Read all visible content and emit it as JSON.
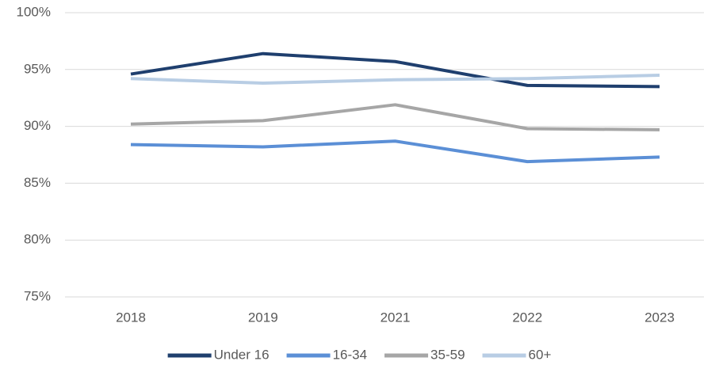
{
  "chart_data": {
    "type": "line",
    "categories": [
      "2018",
      "2019",
      "2021",
      "2022",
      "2023"
    ],
    "series": [
      {
        "name": "Under 16",
        "color": "#1f3f6e",
        "values": [
          94.6,
          96.4,
          95.7,
          93.6,
          93.5
        ]
      },
      {
        "name": "16-34",
        "color": "#5b8fd6",
        "values": [
          88.4,
          88.2,
          88.7,
          86.9,
          87.3
        ]
      },
      {
        "name": "35-59",
        "color": "#a6a6a6",
        "values": [
          90.2,
          90.5,
          91.9,
          89.8,
          89.7
        ]
      },
      {
        "name": "60+",
        "color": "#b8cde4",
        "values": [
          94.2,
          93.8,
          94.1,
          94.2,
          94.5
        ]
      }
    ],
    "ylim": [
      75,
      100
    ],
    "yticks": [
      {
        "value": 75,
        "label": "75%"
      },
      {
        "value": 80,
        "label": "80%"
      },
      {
        "value": 85,
        "label": "85%"
      },
      {
        "value": 90,
        "label": "90%"
      },
      {
        "value": 95,
        "label": "95%"
      },
      {
        "value": 100,
        "label": "100%"
      }
    ],
    "grid": true,
    "legend": "bottom"
  }
}
